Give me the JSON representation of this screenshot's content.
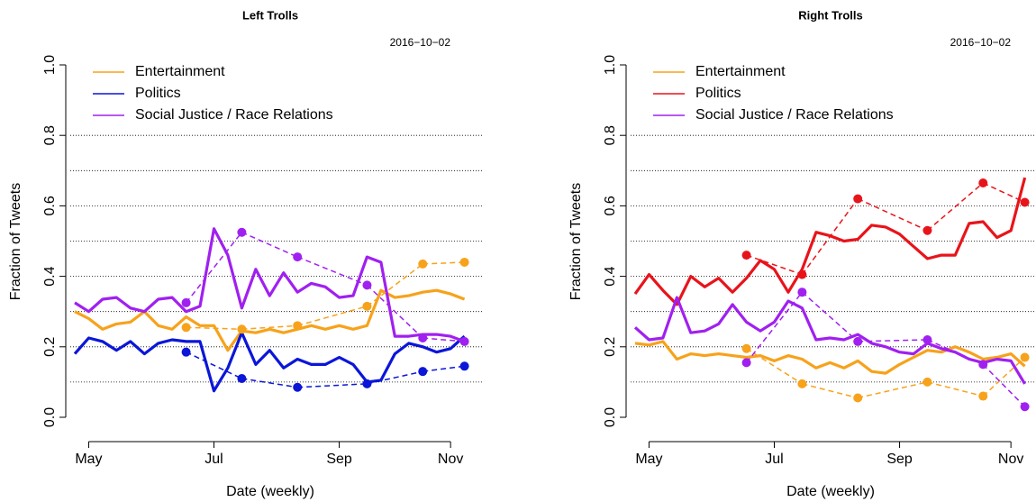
{
  "chart_data": [
    {
      "type": "line",
      "title": "Left Trolls",
      "annotation": "2016−10−02",
      "xlabel": "Date (weekly)",
      "ylabel": "Fraction of Tweets",
      "categories": [
        null,
        "May",
        null,
        null,
        null,
        null,
        null,
        null,
        null,
        null,
        "Jul",
        null,
        null,
        null,
        null,
        null,
        null,
        null,
        null,
        "Sep",
        null,
        null,
        null,
        null,
        null,
        null,
        null,
        "Nov",
        null
      ],
      "ylim": [
        0,
        1
      ],
      "yticks": [
        {
          "value": 0,
          "label": "0.0"
        },
        {
          "value": 0.2,
          "label": "0.2"
        },
        {
          "value": 0.4,
          "label": "0.4"
        },
        {
          "value": 0.6,
          "label": "0.6"
        },
        {
          "value": 0.8,
          "label": "0.8"
        },
        {
          "value": 1,
          "label": "1.0"
        }
      ],
      "gridlines": [
        0.1,
        0.2,
        0.3,
        0.4,
        0.5,
        0.6,
        0.7,
        0.8
      ],
      "legend": "top-left",
      "series": [
        {
          "name": "Entertainment",
          "color": "#f7a21b",
          "style": "solid",
          "values": [
            0.3,
            0.28,
            0.25,
            0.265,
            0.27,
            0.3,
            0.26,
            0.25,
            0.285,
            0.26,
            0.26,
            0.19,
            0.245,
            0.24,
            0.25,
            0.24,
            0.25,
            0.26,
            0.25,
            0.26,
            0.25,
            0.26,
            0.36,
            0.34,
            0.345,
            0.355,
            0.36,
            0.35,
            0.335
          ]
        },
        {
          "name": "Politics",
          "color": "#0b16d8",
          "style": "solid",
          "values": [
            0.18,
            0.225,
            0.215,
            0.19,
            0.215,
            0.18,
            0.21,
            0.22,
            0.215,
            0.215,
            0.075,
            0.14,
            0.24,
            0.15,
            0.19,
            0.14,
            0.165,
            0.15,
            0.15,
            0.17,
            0.15,
            0.1,
            0.105,
            0.18,
            0.21,
            0.2,
            0.185,
            0.195,
            0.23
          ]
        },
        {
          "name": "Social Justice / Race Relations",
          "color": "#a020f0",
          "style": "solid",
          "values": [
            0.325,
            0.3,
            0.335,
            0.34,
            0.31,
            0.3,
            0.335,
            0.34,
            0.3,
            0.315,
            0.535,
            0.46,
            0.31,
            0.42,
            0.345,
            0.41,
            0.355,
            0.38,
            0.37,
            0.34,
            0.345,
            0.455,
            0.44,
            0.23,
            0.23,
            0.235,
            0.235,
            0.23,
            0.215
          ]
        },
        {
          "color": "#f7a21b",
          "style": "dashed",
          "values": [
            null,
            null,
            null,
            null,
            null,
            null,
            null,
            null,
            0.255,
            null,
            null,
            null,
            0.25,
            null,
            null,
            null,
            0.26,
            null,
            null,
            null,
            null,
            0.315,
            null,
            null,
            null,
            0.435,
            null,
            null,
            0.44
          ]
        },
        {
          "color": "#0b16d8",
          "style": "dashed",
          "values": [
            null,
            null,
            null,
            null,
            null,
            null,
            null,
            null,
            0.185,
            null,
            null,
            null,
            0.11,
            null,
            null,
            null,
            0.085,
            null,
            null,
            null,
            null,
            0.095,
            null,
            null,
            null,
            0.13,
            null,
            null,
            0.145
          ]
        },
        {
          "color": "#a020f0",
          "style": "dashed",
          "values": [
            null,
            null,
            null,
            null,
            null,
            null,
            null,
            null,
            0.325,
            null,
            null,
            null,
            0.525,
            null,
            null,
            null,
            0.455,
            null,
            null,
            null,
            null,
            0.375,
            null,
            null,
            null,
            0.225,
            null,
            null,
            0.215
          ]
        }
      ]
    },
    {
      "type": "line",
      "title": "Right Trolls",
      "annotation": "2016−10−02",
      "xlabel": "Date (weekly)",
      "ylabel": "Fraction of Tweets",
      "categories": [
        null,
        "May",
        null,
        null,
        null,
        null,
        null,
        null,
        null,
        null,
        "Jul",
        null,
        null,
        null,
        null,
        null,
        null,
        null,
        null,
        "Sep",
        null,
        null,
        null,
        null,
        null,
        null,
        null,
        "Nov",
        null
      ],
      "ylim": [
        0,
        1
      ],
      "yticks": [
        {
          "value": 0,
          "label": "0.0"
        },
        {
          "value": 0.2,
          "label": "0.2"
        },
        {
          "value": 0.4,
          "label": "0.4"
        },
        {
          "value": 0.6,
          "label": "0.6"
        },
        {
          "value": 0.8,
          "label": "0.8"
        },
        {
          "value": 1,
          "label": "1.0"
        }
      ],
      "gridlines": [
        0.1,
        0.2,
        0.3,
        0.4,
        0.5,
        0.6,
        0.7,
        0.8
      ],
      "legend": "top-left",
      "series": [
        {
          "name": "Entertainment",
          "color": "#f7a21b",
          "style": "solid",
          "values": [
            0.21,
            0.205,
            0.215,
            0.165,
            0.18,
            0.175,
            0.18,
            0.175,
            0.17,
            0.175,
            0.16,
            0.175,
            0.165,
            0.14,
            0.155,
            0.14,
            0.16,
            0.13,
            0.125,
            0.15,
            0.17,
            0.19,
            0.185,
            0.2,
            0.185,
            0.165,
            0.17,
            0.18,
            0.145
          ]
        },
        {
          "name": "Politics",
          "color": "#e8141b",
          "style": "solid",
          "values": [
            0.35,
            0.405,
            0.36,
            0.32,
            0.4,
            0.37,
            0.395,
            0.355,
            0.395,
            0.445,
            0.42,
            0.355,
            0.42,
            0.525,
            0.515,
            0.5,
            0.505,
            0.545,
            0.54,
            0.52,
            0.485,
            0.45,
            0.46,
            0.46,
            0.55,
            0.555,
            0.51,
            0.53,
            0.68
          ]
        },
        {
          "name": "Social Justice / Race Relations",
          "color": "#a020f0",
          "style": "solid",
          "values": [
            0.255,
            0.22,
            0.225,
            0.34,
            0.24,
            0.245,
            0.265,
            0.32,
            0.27,
            0.245,
            0.27,
            0.33,
            0.31,
            0.22,
            0.225,
            0.22,
            0.235,
            0.21,
            0.2,
            0.185,
            0.18,
            0.21,
            0.195,
            0.185,
            0.165,
            0.155,
            0.165,
            0.16,
            0.095
          ]
        },
        {
          "color": "#f7a21b",
          "style": "dashed",
          "values": [
            null,
            null,
            null,
            null,
            null,
            null,
            null,
            null,
            0.195,
            null,
            null,
            null,
            0.095,
            null,
            null,
            null,
            0.055,
            null,
            null,
            null,
            null,
            0.1,
            null,
            null,
            null,
            0.06,
            null,
            null,
            0.17
          ]
        },
        {
          "color": "#e8141b",
          "style": "dashed",
          "values": [
            null,
            null,
            null,
            null,
            null,
            null,
            null,
            null,
            0.46,
            null,
            null,
            null,
            0.405,
            null,
            null,
            null,
            0.62,
            null,
            null,
            null,
            null,
            0.53,
            null,
            null,
            null,
            0.665,
            null,
            null,
            0.61
          ]
        },
        {
          "color": "#a020f0",
          "style": "dashed",
          "values": [
            null,
            null,
            null,
            null,
            null,
            null,
            null,
            null,
            0.155,
            null,
            null,
            null,
            0.355,
            null,
            null,
            null,
            0.215,
            null,
            null,
            null,
            null,
            0.22,
            null,
            null,
            null,
            0.15,
            null,
            null,
            0.03
          ]
        }
      ]
    }
  ]
}
